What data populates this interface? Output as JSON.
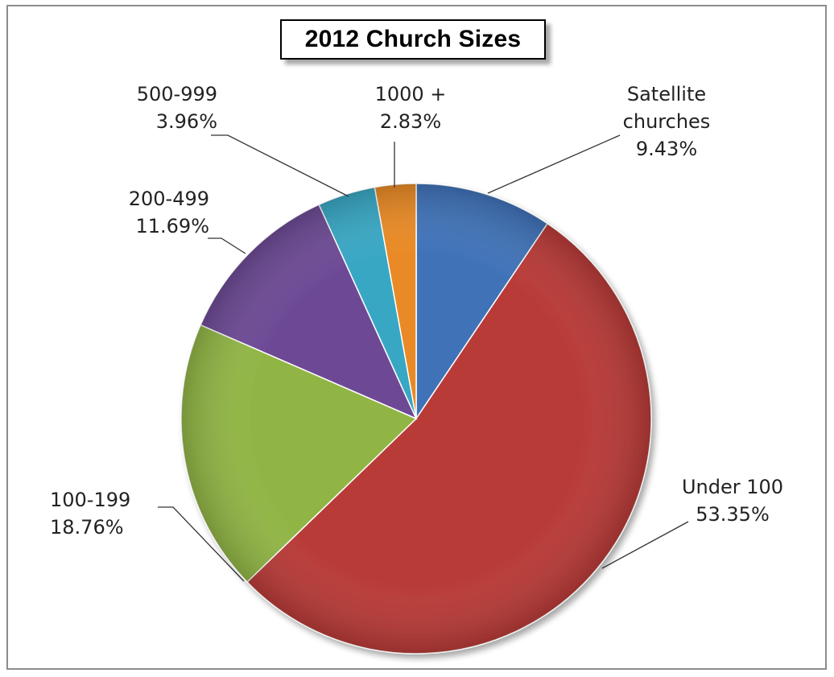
{
  "chart_data": {
    "type": "pie",
    "title": "2012 Church Sizes",
    "slices": [
      {
        "label": "Satellite churches",
        "label_lines": [
          "Satellite",
          "churches"
        ],
        "value": 9.43,
        "value_text": "9.43%",
        "color": "#3f72b8"
      },
      {
        "label": "Under 100",
        "label_lines": [
          "Under 100"
        ],
        "value": 53.35,
        "value_text": "53.35%",
        "color": "#b83a37"
      },
      {
        "label": "100-199",
        "label_lines": [
          "100-199"
        ],
        "value": 18.76,
        "value_text": "18.76%",
        "color": "#91b545"
      },
      {
        "label": "200-499",
        "label_lines": [
          "200-499"
        ],
        "value": 11.69,
        "value_text": "11.69%",
        "color": "#6d4a95"
      },
      {
        "label": "500-999",
        "label_lines": [
          "500-999"
        ],
        "value": 3.96,
        "value_text": "3.96%",
        "color": "#38a7c4"
      },
      {
        "label": "1000 +",
        "label_lines": [
          "1000 +"
        ],
        "value": 2.83,
        "value_text": "2.83%",
        "color": "#e98a25"
      }
    ],
    "start_angle": "12 o'clock",
    "direction": "clockwise",
    "legend": "none",
    "labels": "outside with leader lines"
  }
}
